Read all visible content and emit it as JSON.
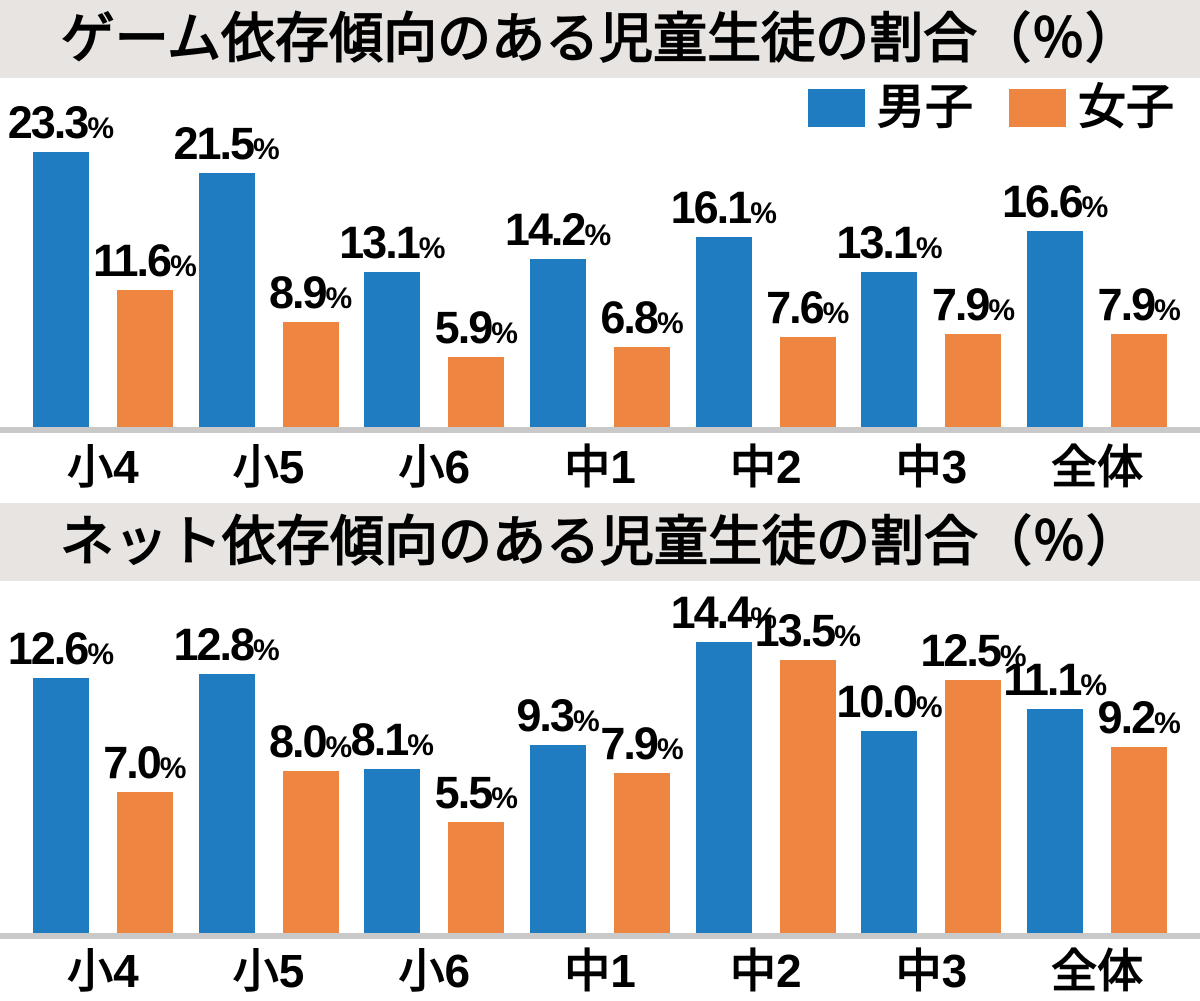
{
  "chart_data": [
    {
      "type": "bar",
      "title": "ゲーム依存傾向のある児童生徒の割合（％）",
      "unit": "%",
      "categories": [
        "小4",
        "小5",
        "小6",
        "中1",
        "中2",
        "中3",
        "全体"
      ],
      "series": [
        {
          "name": "男子",
          "color": "#1f7cc1",
          "values": [
            23.3,
            21.5,
            13.1,
            14.2,
            16.1,
            13.1,
            16.6
          ],
          "labels": [
            "23.3",
            "21.5",
            "13.1",
            "14.2",
            "16.1",
            "13.1",
            "16.6"
          ]
        },
        {
          "name": "女子",
          "color": "#ee8540",
          "values": [
            11.6,
            8.9,
            5.9,
            6.8,
            7.6,
            7.9,
            7.9
          ],
          "labels": [
            "11.6",
            "8.9",
            "5.9",
            "6.8",
            "7.6",
            "7.9",
            "7.9"
          ]
        }
      ],
      "ylim": [
        0,
        25
      ],
      "grid": false,
      "axes_shown": false,
      "value_labels": true,
      "legend_position": "top-right"
    },
    {
      "type": "bar",
      "title": "ネット依存傾向のある児童生徒の割合（％）",
      "unit": "%",
      "categories": [
        "小4",
        "小5",
        "小6",
        "中1",
        "中2",
        "中3",
        "全体"
      ],
      "series": [
        {
          "name": "男子",
          "color": "#1f7cc1",
          "values": [
            12.6,
            12.8,
            8.1,
            9.3,
            14.4,
            10.0,
            11.1
          ],
          "labels": [
            "12.6",
            "12.8",
            "8.1",
            "9.3",
            "14.4",
            "10.0",
            "11.1"
          ]
        },
        {
          "name": "女子",
          "color": "#ee8540",
          "values": [
            7.0,
            8.0,
            5.5,
            7.9,
            13.5,
            12.5,
            9.2
          ],
          "labels": [
            "7.0",
            "8.0",
            "5.5",
            "7.9",
            "13.5",
            "12.5",
            "9.2"
          ]
        }
      ],
      "ylim": [
        0,
        16
      ],
      "grid": false,
      "axes_shown": false,
      "value_labels": true,
      "legend_position": "none"
    }
  ],
  "styles": {
    "bar_color_boys": "#1f7cc1",
    "bar_color_girls": "#ee8540",
    "title_band_bg": "#e8e4e1",
    "baseline_color": "#c9c9c9",
    "text_color": "#000000"
  }
}
